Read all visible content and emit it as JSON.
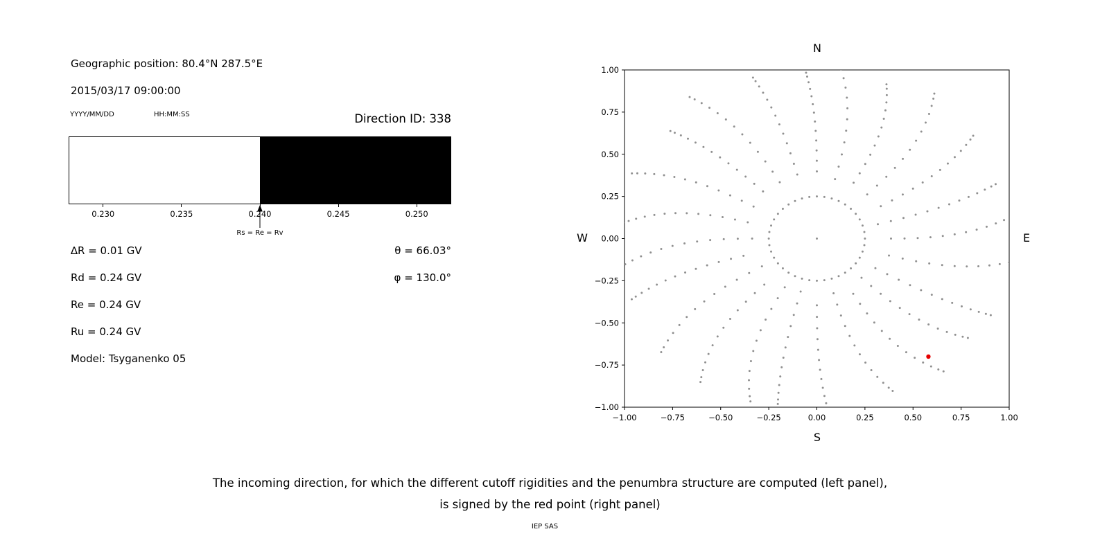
{
  "left_panel": {
    "geo_position": "Geographic position: 80.4°N 287.5°E",
    "datetime": "2015/03/17 09:00:00",
    "date_format_label": "YYYY/MM/DD",
    "time_format_label": "HH:MM:SS",
    "direction_id_label": "Direction ID: 338",
    "arrow_label": "Rs = Re = Rv",
    "params_left": [
      "∆R = 0.01 GV",
      "Rd = 0.24 GV",
      "Re = 0.24 GV",
      "Ru = 0.24 GV",
      "Model: Tsyganenko 05"
    ],
    "params_right": [
      "θ = 66.03°",
      "φ = 130.0°"
    ]
  },
  "caption": {
    "line1": "The incoming direction, for which the different cutoff rigidities and the penumbra structure are computed (left panel),",
    "line2": "is signed by the red point (right panel)",
    "credit": "IEP SAS"
  },
  "chart_data": [
    {
      "type": "bar",
      "subtype": "penumbra-band",
      "orientation": "horizontal",
      "xlim": [
        0.2278,
        0.2522
      ],
      "xticks": [
        0.23,
        0.235,
        0.24,
        0.245,
        0.25
      ],
      "xtick_labels": [
        "0.230",
        "0.235",
        "0.240",
        "0.245",
        "0.250"
      ],
      "segments": [
        {
          "from": 0.2278,
          "to": 0.24,
          "state": "allowed",
          "color": "#ffffff"
        },
        {
          "from": 0.24,
          "to": 0.2522,
          "state": "forbidden",
          "color": "#000000"
        }
      ],
      "annotation": {
        "x": 0.24,
        "label": "Rs = Re = Rv"
      }
    },
    {
      "type": "scatter",
      "xlim": [
        -1,
        1
      ],
      "ylim": [
        -1,
        1
      ],
      "xticks": [
        -1,
        -0.75,
        -0.5,
        -0.25,
        0,
        0.25,
        0.5,
        0.75,
        1
      ],
      "xtick_labels": [
        "−1.00",
        "−0.75",
        "−0.50",
        "−0.25",
        "0.00",
        "0.25",
        "0.50",
        "0.75",
        "1.00"
      ],
      "yticks": [
        1,
        0.75,
        0.5,
        0.25,
        0,
        -0.25,
        -0.5,
        -0.75,
        -1
      ],
      "ytick_labels": [
        "1.00",
        "0.75",
        "0.50",
        "0.25",
        "0.00",
        "−0.25",
        "−0.50",
        "−0.75",
        "−1.00"
      ],
      "compass_labels": {
        "top": "N",
        "bottom": "S",
        "left": "W",
        "right": "E"
      },
      "dot_color": "#909090",
      "highlight_point": {
        "x": 0.58,
        "y": -0.7,
        "color": "#e60000"
      },
      "pattern": {
        "center_dot": true,
        "inner_ring": {
          "radius": 0.25,
          "points": 40
        },
        "spokes": {
          "count": 24,
          "angle_step_deg": 15,
          "r_start": 0.36,
          "r_end": 1.03,
          "points_per_spoke": 13,
          "spiral_bend_deg": 9
        }
      }
    }
  ]
}
